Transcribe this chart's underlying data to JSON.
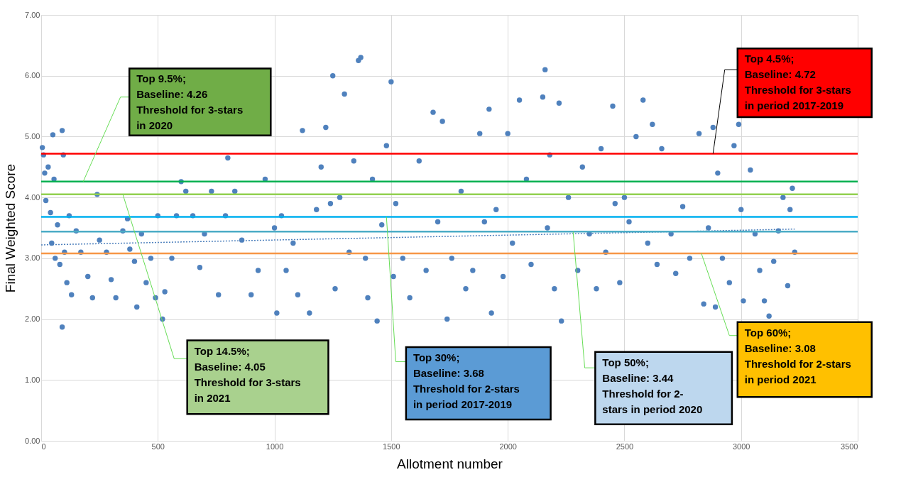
{
  "chart_data": {
    "type": "scatter",
    "xlabel": "Allotment number",
    "ylabel": "Final Weighted Score",
    "xlim": [
      0,
      3500
    ],
    "xticks": [
      0,
      500,
      1000,
      1500,
      2000,
      2500,
      3000,
      3500
    ],
    "ylim": [
      0,
      7
    ],
    "yticks": [
      {
        "value": 0,
        "label": "0.00"
      },
      {
        "value": 1,
        "label": "1.00"
      },
      {
        "value": 2,
        "label": "2.00"
      },
      {
        "value": 3,
        "label": "3.00"
      },
      {
        "value": 4,
        "label": "4.00"
      },
      {
        "value": 5,
        "label": "5.00"
      },
      {
        "value": 6,
        "label": "6.00"
      },
      {
        "value": 7,
        "label": "7.00"
      }
    ],
    "grid": true,
    "marker": "circle",
    "series": [
      {
        "color": "#4f81bd",
        "x": [
          5,
          10,
          15,
          20,
          30,
          40,
          45,
          50,
          55,
          60,
          70,
          80,
          90,
          90,
          95,
          100,
          110,
          120,
          130,
          150,
          170,
          200,
          220,
          240,
          250,
          280,
          300,
          320,
          350,
          370,
          380,
          400,
          410,
          430,
          450,
          470,
          490,
          500,
          520,
          530,
          560,
          580,
          600,
          620,
          650,
          680,
          700,
          730,
          760,
          790,
          800,
          830,
          860,
          900,
          930,
          960,
          1000,
          1010,
          1030,
          1050,
          1080,
          1100,
          1120,
          1150,
          1180,
          1200,
          1220,
          1240,
          1250,
          1260,
          1280,
          1300,
          1320,
          1340,
          1360,
          1370,
          1390,
          1400,
          1420,
          1440,
          1460,
          1480,
          1500,
          1510,
          1520,
          1550,
          1580,
          1620,
          1650,
          1680,
          1700,
          1720,
          1740,
          1760,
          1800,
          1820,
          1850,
          1880,
          1900,
          1920,
          1930,
          1950,
          1980,
          2000,
          2020,
          2050,
          2080,
          2100,
          2150,
          2160,
          2170,
          2180,
          2200,
          2220,
          2230,
          2260,
          2300,
          2320,
          2350,
          2380,
          2400,
          2420,
          2450,
          2460,
          2480,
          2500,
          2520,
          2550,
          2580,
          2600,
          2620,
          2640,
          2660,
          2700,
          2720,
          2750,
          2780,
          2820,
          2840,
          2860,
          2880,
          2890,
          2900,
          2920,
          2950,
          2970,
          2990,
          3000,
          3010,
          3040,
          3060,
          3080,
          3100,
          3120,
          3140,
          3160,
          3180,
          3200,
          3210,
          3220,
          3230
        ],
        "values": [
          4.82,
          4.7,
          4.4,
          3.95,
          4.5,
          3.75,
          3.25,
          5.03,
          4.3,
          3.0,
          3.55,
          2.9,
          5.1,
          1.87,
          4.7,
          3.1,
          2.6,
          3.7,
          2.4,
          3.45,
          3.1,
          2.7,
          2.35,
          4.05,
          3.3,
          3.1,
          2.65,
          2.35,
          3.45,
          3.65,
          3.15,
          2.95,
          2.2,
          3.4,
          2.6,
          3.0,
          2.35,
          3.7,
          2.0,
          2.45,
          3.0,
          3.7,
          4.26,
          4.1,
          3.7,
          2.85,
          3.4,
          4.1,
          2.4,
          3.7,
          4.65,
          4.1,
          3.3,
          2.4,
          2.8,
          4.3,
          3.5,
          2.1,
          3.7,
          2.8,
          3.25,
          2.4,
          5.1,
          2.1,
          3.8,
          4.5,
          5.15,
          3.9,
          6.0,
          2.5,
          4.0,
          5.7,
          3.1,
          4.6,
          6.25,
          6.3,
          3.0,
          2.35,
          4.3,
          1.97,
          3.55,
          4.85,
          5.9,
          2.7,
          3.9,
          3.0,
          2.35,
          4.6,
          2.8,
          5.4,
          3.6,
          5.25,
          2.0,
          3.0,
          4.1,
          2.5,
          2.8,
          5.05,
          3.6,
          5.45,
          2.1,
          3.8,
          2.7,
          5.05,
          3.25,
          5.6,
          4.3,
          2.9,
          5.65,
          6.1,
          3.5,
          4.7,
          2.5,
          5.55,
          1.97,
          4.0,
          2.8,
          4.5,
          3.4,
          2.5,
          4.8,
          3.1,
          5.5,
          3.9,
          2.6,
          4.0,
          3.6,
          5.0,
          5.6,
          3.25,
          5.2,
          2.9,
          4.8,
          3.4,
          2.75,
          3.85,
          3.0,
          5.05,
          2.25,
          3.5,
          5.15,
          2.2,
          4.4,
          3.0,
          2.6,
          4.85,
          5.2,
          3.8,
          2.3,
          4.45,
          3.4,
          2.8,
          2.3,
          2.05,
          2.95,
          3.45,
          4.0,
          2.55,
          3.8,
          4.15,
          3.1
        ]
      },
      {
        "type": "line",
        "color": "#4f81bd",
        "line_style": "dotted",
        "marker": "none",
        "x": [
          0,
          3230
        ],
        "values": [
          3.22,
          3.48
        ]
      }
    ],
    "ref_lines": [
      {
        "axis": "y",
        "value": 4.72,
        "color": "#ff0000",
        "label": "Top 4.5%;\nBaseline: 4.72\nThreshold for 3-stars\nin period 2017-2019"
      },
      {
        "axis": "y",
        "value": 4.26,
        "color": "#00b050",
        "label": "Top 9.5%;\nBaseline: 4.26\nThreshold for 3-stars\nin 2020"
      },
      {
        "axis": "y",
        "value": 4.05,
        "color": "#92d050",
        "label": "Top 14.5%;\nBaseline: 4.05\nThreshold for 3-stars\nin 2021"
      },
      {
        "axis": "y",
        "value": 3.68,
        "color": "#00b0f0",
        "label": "Top 30%;\nBaseline: 3.68\nThreshold for 2-stars\nin period 2017-2019"
      },
      {
        "axis": "y",
        "value": 3.44,
        "color": "#4bacc6",
        "label": "Top 50%;\nBaseline: 3.44\nThreshold for 2-\nstars in period 2020"
      },
      {
        "axis": "y",
        "value": 3.08,
        "color": "#f79646",
        "label": "Top 60%;\nBaseline: 3.08\nThreshold for 2-stars\nin period 2021"
      }
    ]
  }
}
